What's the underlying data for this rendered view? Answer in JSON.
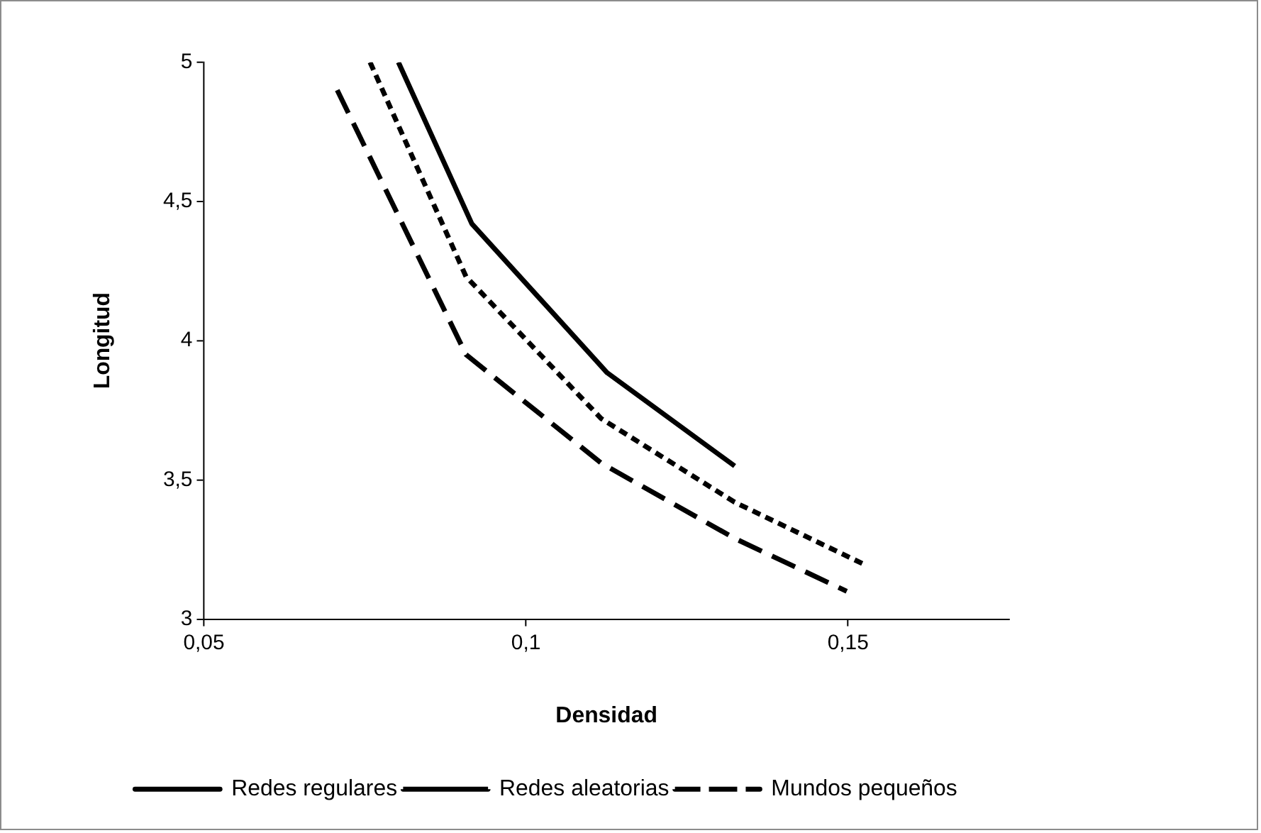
{
  "chart_data": {
    "type": "line",
    "xlabel": "Densidad",
    "ylabel": "Longitud",
    "xlim": [
      0.05,
      0.175
    ],
    "xticks": [
      {
        "value": 0.05,
        "label": "0,05"
      },
      {
        "value": 0.1,
        "label": "0,1"
      },
      {
        "value": 0.15,
        "label": "0,15"
      }
    ],
    "ylim": [
      3,
      5
    ],
    "yticks": [
      3,
      {
        "value": 3.5,
        "label": "3,5"
      },
      4,
      {
        "value": 4.5,
        "label": "4,5"
      },
      5
    ],
    "grid": false,
    "legend": "bottom",
    "marker": "none",
    "series": [
      {
        "name": "Redes regulares",
        "color": "#000000",
        "line_style": "solid",
        "x": [
          0.0802,
          0.0916,
          0.1126,
          0.1324
        ],
        "values": [
          5.0,
          4.42,
          3.885,
          3.55
        ]
      },
      {
        "name": "Redes aleatorias",
        "color": "#000000",
        "line_style": "dotted",
        "x": [
          0.0758,
          0.0907,
          0.1117,
          0.1324,
          0.1522
        ],
        "values": [
          5.0,
          4.23,
          3.72,
          3.42,
          3.2
        ]
      },
      {
        "name": "Mundos pequeños",
        "color": "#000000",
        "line_style": "dashed",
        "x": [
          0.0707,
          0.0907,
          0.1117,
          0.1324,
          0.1498
        ],
        "values": [
          4.9,
          3.95,
          3.56,
          3.29,
          3.1
        ]
      }
    ]
  }
}
